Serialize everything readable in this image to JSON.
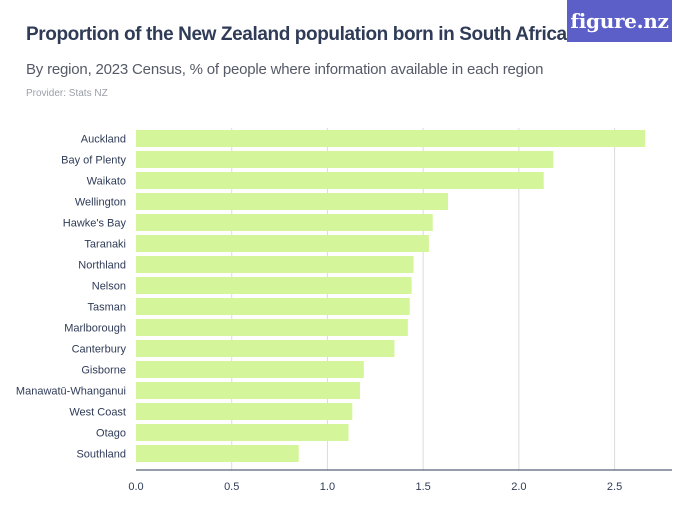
{
  "header": {
    "title": "Proportion of the New Zealand population born in South Africa",
    "subtitle": "By region, 2023 Census, % of people where information available in each region",
    "provider": "Provider: Stats NZ",
    "logo_text": "figure.nz"
  },
  "colors": {
    "bar": "#d4f59a",
    "grid": "#dcdcdc",
    "axis": "#2f3b57",
    "logo_bg": "#5b5fc7"
  },
  "chart_data": {
    "type": "bar",
    "orientation": "horizontal",
    "categories": [
      "Auckland",
      "Bay of Plenty",
      "Waikato",
      "Wellington",
      "Hawke's Bay",
      "Taranaki",
      "Northland",
      "Nelson",
      "Tasman",
      "Marlborough",
      "Canterbury",
      "Gisborne",
      "Manawatū-Whanganui",
      "West Coast",
      "Otago",
      "Southland"
    ],
    "values": [
      2.66,
      2.18,
      2.13,
      1.63,
      1.55,
      1.53,
      1.45,
      1.44,
      1.43,
      1.42,
      1.35,
      1.19,
      1.17,
      1.13,
      1.11,
      0.85
    ],
    "xlim": [
      0,
      2.8
    ],
    "xticks": [
      0,
      0.5,
      1,
      1.5,
      2,
      2.5
    ],
    "xtick_labels": [
      "0.0",
      "0.5",
      "1.0",
      "1.5",
      "2.0",
      "2.5"
    ],
    "grid": true
  }
}
